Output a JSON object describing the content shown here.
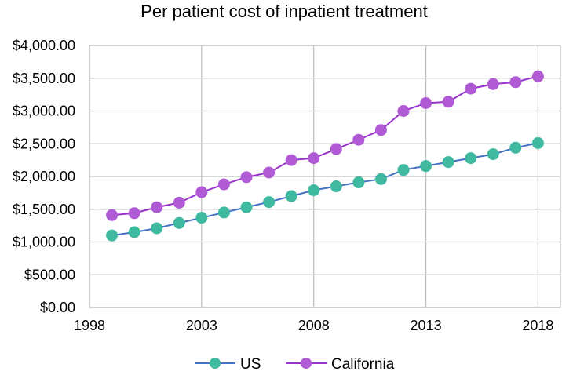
{
  "chart_data": {
    "type": "line",
    "title": "Per patient cost of inpatient treatment",
    "xlabel": "",
    "ylabel": "",
    "xlim": [
      1998,
      2019
    ],
    "ylim": [
      0,
      4000
    ],
    "x_ticks": [
      1998,
      2003,
      2008,
      2013,
      2018
    ],
    "y_ticks": [
      0,
      500,
      1000,
      1500,
      2000,
      2500,
      3000,
      3500,
      4000
    ],
    "y_tick_labels": [
      "$0.00",
      "$500.00",
      "$1,000.00",
      "$1,500.00",
      "$2,000.00",
      "$2,500.00",
      "$3,000.00",
      "$3,500.00",
      "$4,000.00"
    ],
    "x_tick_labels": [
      "1998",
      "2003",
      "2008",
      "2013",
      "2018"
    ],
    "grid": true,
    "legend_position": "bottom",
    "x": [
      1999,
      2000,
      2001,
      2002,
      2003,
      2004,
      2005,
      2006,
      2007,
      2008,
      2009,
      2010,
      2011,
      2012,
      2013,
      2014,
      2015,
      2016,
      2017,
      2018
    ],
    "series": [
      {
        "name": "US",
        "line_color": "#4472c4",
        "marker_color": "#3fb9a0",
        "values": [
          1100,
          1150,
          1210,
          1290,
          1370,
          1450,
          1530,
          1610,
          1700,
          1790,
          1850,
          1910,
          1960,
          2100,
          2160,
          2220,
          2280,
          2340,
          2440,
          2510
        ]
      },
      {
        "name": "California",
        "line_color": "#9933cc",
        "marker_color": "#b05ad6",
        "values": [
          1410,
          1440,
          1530,
          1600,
          1760,
          1880,
          1990,
          2060,
          2250,
          2280,
          2420,
          2560,
          2710,
          3000,
          3120,
          3140,
          3340,
          3410,
          3440,
          3530
        ]
      }
    ]
  }
}
